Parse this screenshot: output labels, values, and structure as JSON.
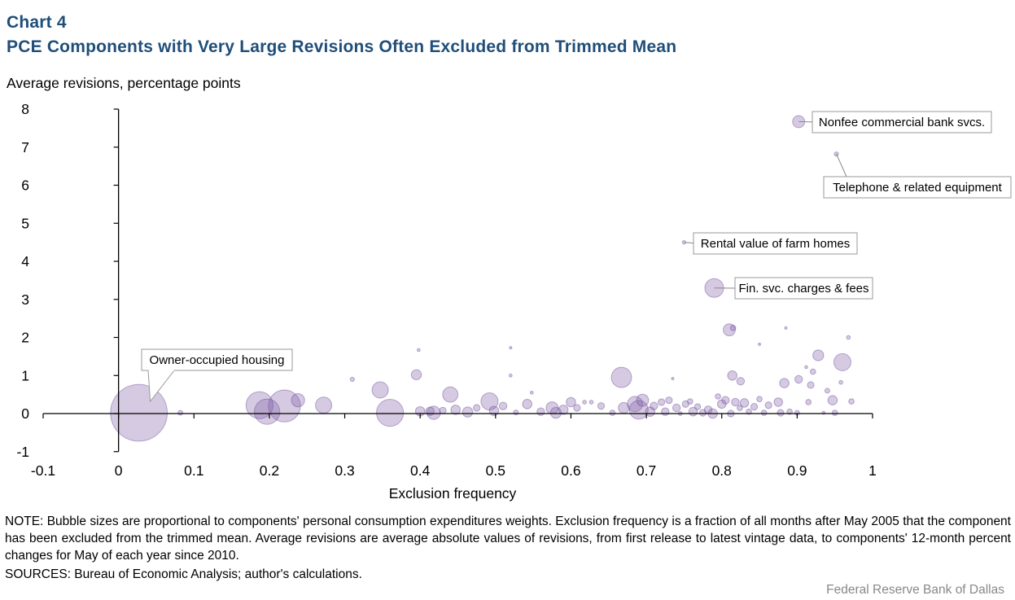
{
  "title_line1": "Chart 4",
  "title_line2": "PCE Components with Very Large Revisions Often Excluded from Trimmed Mean",
  "note": "NOTE: Bubble sizes are proportional to components' personal consumption expenditures weights. Exclusion frequency is a fraction of all months after May 2005 that the component has been excluded from the trimmed mean. Average revisions are average absolute values of revisions, from first release to latest vintage data, to components' 12-month percent changes for May of each year since 2010.",
  "sources": "SOURCES: Bureau of Economic Analysis; author's calculations.",
  "credit": "Federal Reserve Bank of Dallas",
  "colors": {
    "title": "#1f4e79",
    "bubble_fill": "#7b5aa6",
    "bubble_stroke": "#6a4a96",
    "axis": "#000000",
    "callout_border": "#999999"
  },
  "chart_data": {
    "type": "scatter",
    "subtype": "bubble",
    "title": "PCE Components with Very Large Revisions Often Excluded from Trimmed Mean",
    "xlabel": "Exclusion frequency",
    "ylabel": "Average revisions, percentage points",
    "xlim": [
      -0.1,
      1
    ],
    "ylim": [
      -1,
      8
    ],
    "xticks": [
      "-0.1",
      "0",
      "0.1",
      "0.2",
      "0.3",
      "0.4",
      "0.5",
      "0.6",
      "0.7",
      "0.8",
      "0.9",
      "1"
    ],
    "yticks": [
      "-1",
      "0",
      "1",
      "2",
      "3",
      "4",
      "5",
      "6",
      "7",
      "8"
    ],
    "grid": false,
    "annotations": [
      {
        "label": "Nonfee commercial bank svcs.",
        "x": 0.902,
        "y": 7.67
      },
      {
        "label": "Telephone & related equipment",
        "x": 0.952,
        "y": 6.82
      },
      {
        "label": "Rental value of farm homes",
        "x": 0.75,
        "y": 4.5
      },
      {
        "label": "Fin. svc. charges & fees",
        "x": 0.79,
        "y": 3.3
      },
      {
        "label": "Owner-occupied housing",
        "x": 0.027,
        "y": 0.02
      }
    ],
    "points": [
      {
        "x": 0.027,
        "y": 0.02,
        "w": 11.0
      },
      {
        "x": 0.082,
        "y": 0.02,
        "w": 0.08
      },
      {
        "x": 0.187,
        "y": 0.22,
        "w": 2.5
      },
      {
        "x": 0.197,
        "y": 0.05,
        "w": 2.2
      },
      {
        "x": 0.22,
        "y": 0.2,
        "w": 3.5
      },
      {
        "x": 0.238,
        "y": 0.35,
        "w": 0.6
      },
      {
        "x": 0.272,
        "y": 0.22,
        "w": 0.9
      },
      {
        "x": 0.31,
        "y": 0.9,
        "w": 0.06
      },
      {
        "x": 0.347,
        "y": 0.62,
        "w": 0.9
      },
      {
        "x": 0.36,
        "y": 0.02,
        "w": 2.5
      },
      {
        "x": 0.395,
        "y": 1.02,
        "w": 0.35
      },
      {
        "x": 0.398,
        "y": 1.67,
        "w": 0.03
      },
      {
        "x": 0.4,
        "y": 0.06,
        "w": 0.3
      },
      {
        "x": 0.413,
        "y": 0.06,
        "w": 0.25
      },
      {
        "x": 0.418,
        "y": 0.02,
        "w": 0.6
      },
      {
        "x": 0.43,
        "y": 0.08,
        "w": 0.15
      },
      {
        "x": 0.44,
        "y": 0.5,
        "w": 0.8
      },
      {
        "x": 0.447,
        "y": 0.1,
        "w": 0.3
      },
      {
        "x": 0.463,
        "y": 0.04,
        "w": 0.35
      },
      {
        "x": 0.475,
        "y": 0.15,
        "w": 0.15
      },
      {
        "x": 0.492,
        "y": 0.32,
        "w": 1.0
      },
      {
        "x": 0.498,
        "y": 0.07,
        "w": 0.3
      },
      {
        "x": 0.51,
        "y": 0.2,
        "w": 0.2
      },
      {
        "x": 0.52,
        "y": 1.73,
        "w": 0.02
      },
      {
        "x": 0.52,
        "y": 1.0,
        "w": 0.03
      },
      {
        "x": 0.527,
        "y": 0.03,
        "w": 0.08
      },
      {
        "x": 0.542,
        "y": 0.25,
        "w": 0.3
      },
      {
        "x": 0.548,
        "y": 0.55,
        "w": 0.03
      },
      {
        "x": 0.56,
        "y": 0.05,
        "w": 0.2
      },
      {
        "x": 0.575,
        "y": 0.15,
        "w": 0.5
      },
      {
        "x": 0.58,
        "y": 0.02,
        "w": 0.4
      },
      {
        "x": 0.59,
        "y": 0.1,
        "w": 0.3
      },
      {
        "x": 0.6,
        "y": 0.3,
        "w": 0.3
      },
      {
        "x": 0.608,
        "y": 0.15,
        "w": 0.15
      },
      {
        "x": 0.618,
        "y": 0.3,
        "w": 0.05
      },
      {
        "x": 0.627,
        "y": 0.3,
        "w": 0.05
      },
      {
        "x": 0.64,
        "y": 0.2,
        "w": 0.15
      },
      {
        "x": 0.655,
        "y": 0.02,
        "w": 0.1
      },
      {
        "x": 0.667,
        "y": 0.95,
        "w": 1.4
      },
      {
        "x": 0.67,
        "y": 0.15,
        "w": 0.4
      },
      {
        "x": 0.685,
        "y": 0.25,
        "w": 0.8
      },
      {
        "x": 0.69,
        "y": 0.1,
        "w": 1.2
      },
      {
        "x": 0.695,
        "y": 0.35,
        "w": 0.5
      },
      {
        "x": 0.705,
        "y": 0.05,
        "w": 0.3
      },
      {
        "x": 0.71,
        "y": 0.2,
        "w": 0.2
      },
      {
        "x": 0.72,
        "y": 0.3,
        "w": 0.15
      },
      {
        "x": 0.725,
        "y": 0.05,
        "w": 0.2
      },
      {
        "x": 0.73,
        "y": 0.35,
        "w": 0.15
      },
      {
        "x": 0.735,
        "y": 0.92,
        "w": 0.01
      },
      {
        "x": 0.74,
        "y": 0.15,
        "w": 0.2
      },
      {
        "x": 0.745,
        "y": 0.0,
        "w": 0.05
      },
      {
        "x": 0.752,
        "y": 0.25,
        "w": 0.15
      },
      {
        "x": 0.758,
        "y": 0.32,
        "w": 0.1
      },
      {
        "x": 0.762,
        "y": 0.05,
        "w": 0.25
      },
      {
        "x": 0.768,
        "y": 0.18,
        "w": 0.12
      },
      {
        "x": 0.775,
        "y": 0.02,
        "w": 0.15
      },
      {
        "x": 0.782,
        "y": 0.1,
        "w": 0.2
      },
      {
        "x": 0.788,
        "y": 0.0,
        "w": 0.3
      },
      {
        "x": 0.795,
        "y": 0.45,
        "w": 0.1
      },
      {
        "x": 0.8,
        "y": 0.25,
        "w": 0.25
      },
      {
        "x": 0.805,
        "y": 0.35,
        "w": 0.2
      },
      {
        "x": 0.812,
        "y": 0.0,
        "w": 0.15
      },
      {
        "x": 0.818,
        "y": 0.3,
        "w": 0.2
      },
      {
        "x": 0.824,
        "y": 0.15,
        "w": 0.1
      },
      {
        "x": 0.83,
        "y": 0.28,
        "w": 0.25
      },
      {
        "x": 0.836,
        "y": 0.05,
        "w": 0.1
      },
      {
        "x": 0.843,
        "y": 0.18,
        "w": 0.15
      },
      {
        "x": 0.85,
        "y": 0.38,
        "w": 0.1
      },
      {
        "x": 0.856,
        "y": 0.02,
        "w": 0.1
      },
      {
        "x": 0.862,
        "y": 0.22,
        "w": 0.15
      },
      {
        "x": 0.875,
        "y": 0.3,
        "w": 0.25
      },
      {
        "x": 0.878,
        "y": 0.02,
        "w": 0.15
      },
      {
        "x": 0.883,
        "y": 0.8,
        "w": 0.3
      },
      {
        "x": 0.89,
        "y": 0.05,
        "w": 0.1
      },
      {
        "x": 0.9,
        "y": 0.02,
        "w": 0.08
      },
      {
        "x": 0.902,
        "y": 0.9,
        "w": 0.2
      },
      {
        "x": 0.912,
        "y": 1.22,
        "w": 0.03
      },
      {
        "x": 0.915,
        "y": 0.3,
        "w": 0.1
      },
      {
        "x": 0.918,
        "y": 0.75,
        "w": 0.15
      },
      {
        "x": 0.921,
        "y": 1.1,
        "w": 0.1
      },
      {
        "x": 0.928,
        "y": 1.53,
        "w": 0.4
      },
      {
        "x": 0.935,
        "y": 0.02,
        "w": 0.03
      },
      {
        "x": 0.94,
        "y": 0.6,
        "w": 0.08
      },
      {
        "x": 0.947,
        "y": 0.35,
        "w": 0.3
      },
      {
        "x": 0.95,
        "y": 0.02,
        "w": 0.1
      },
      {
        "x": 0.958,
        "y": 0.82,
        "w": 0.05
      },
      {
        "x": 0.96,
        "y": 1.35,
        "w": 1.0
      },
      {
        "x": 0.968,
        "y": 2.0,
        "w": 0.05
      },
      {
        "x": 0.972,
        "y": 0.32,
        "w": 0.1
      },
      {
        "x": 0.85,
        "y": 1.82,
        "w": 0.02
      },
      {
        "x": 0.885,
        "y": 2.25,
        "w": 0.01
      },
      {
        "x": 0.81,
        "y": 2.2,
        "w": 0.5
      },
      {
        "x": 0.815,
        "y": 2.25,
        "w": 0.1
      },
      {
        "x": 0.814,
        "y": 1.0,
        "w": 0.3
      },
      {
        "x": 0.825,
        "y": 0.85,
        "w": 0.2
      },
      {
        "x": 0.79,
        "y": 3.3,
        "w": 1.2
      },
      {
        "x": 0.75,
        "y": 4.5,
        "w": 0.04
      },
      {
        "x": 0.902,
        "y": 7.67,
        "w": 0.5
      },
      {
        "x": 0.952,
        "y": 6.82,
        "w": 0.06
      }
    ]
  }
}
